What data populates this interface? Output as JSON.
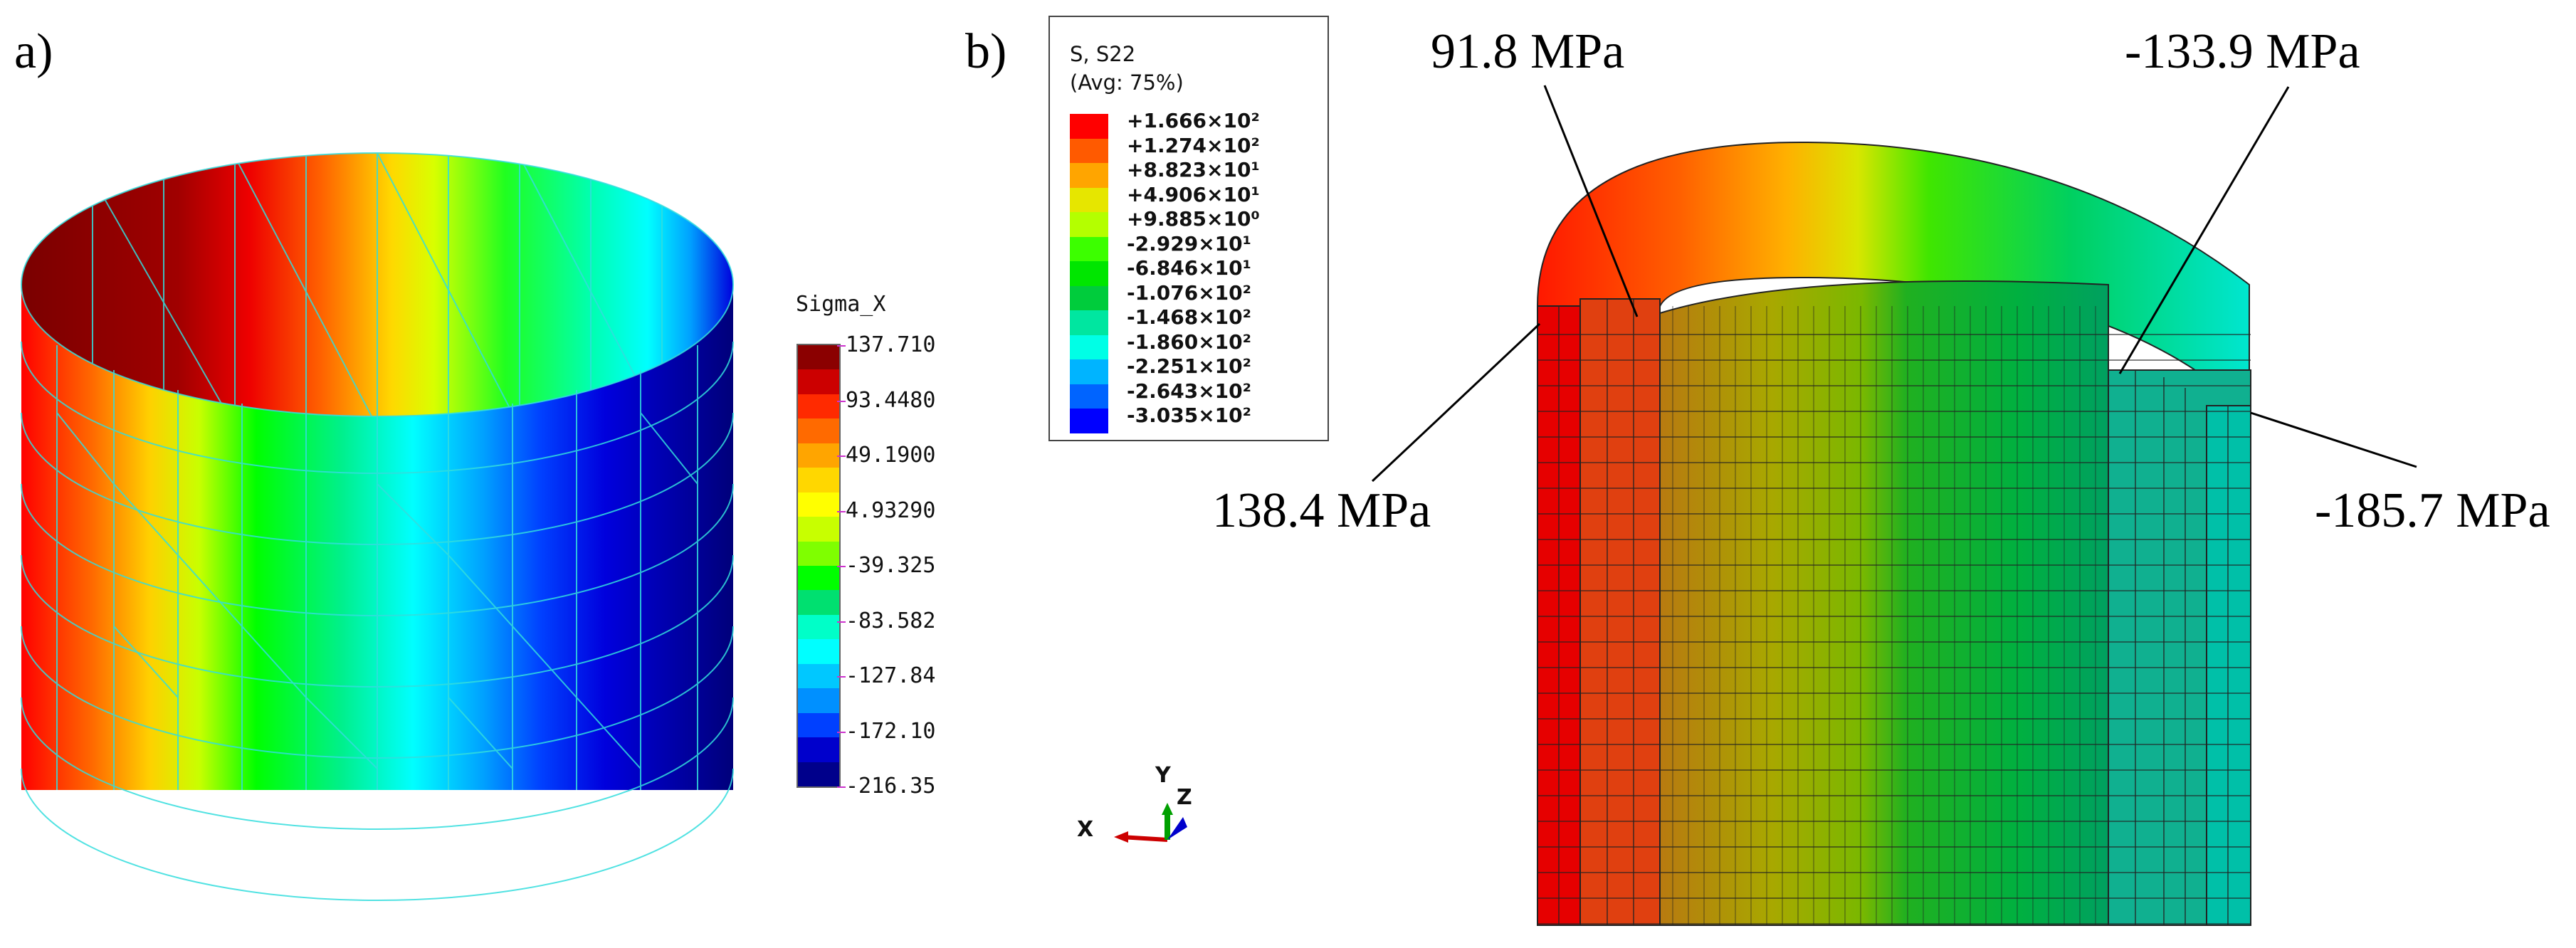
{
  "panels": {
    "a_label": "a)",
    "b_label": "b)"
  },
  "legend_a": {
    "title": "Sigma_X",
    "values": [
      "137.710",
      "93.4480",
      "49.1900",
      "4.93290",
      "-39.325",
      "-83.582",
      "-127.84",
      "-172.10",
      "-216.35"
    ],
    "colors": [
      "#8b0000",
      "#cc0000",
      "#ff2a00",
      "#ff6a00",
      "#ffa500",
      "#ffd700",
      "#ffff00",
      "#c8ff00",
      "#7fff00",
      "#00ff00",
      "#00e070",
      "#00ffc8",
      "#00ffff",
      "#00c8ff",
      "#0090ff",
      "#0040ff",
      "#0000cc",
      "#00008b"
    ]
  },
  "legend_b": {
    "header_1": "S, S22",
    "header_2": "(Avg: 75%)",
    "values": [
      "+1.666×10²",
      "+1.274×10²",
      "+8.823×10¹",
      "+4.906×10¹",
      "+9.885×10⁰",
      "-2.929×10¹",
      "-6.846×10¹",
      "-1.076×10²",
      "-1.468×10²",
      "-1.860×10²",
      "-2.251×10²",
      "-2.643×10²",
      "-3.035×10²"
    ],
    "colors": [
      "#ff0000",
      "#ff5a00",
      "#ffa500",
      "#e6e600",
      "#b4ff00",
      "#3cff00",
      "#00e600",
      "#00cc3c",
      "#00e6a0",
      "#00ffe6",
      "#00b4ff",
      "#0064ff",
      "#0000ff"
    ]
  },
  "annotations": {
    "top_left": "91.8 MPa",
    "top_right": "-133.9 MPa",
    "left": "138.4 MPa",
    "right": "-185.7 MPa"
  },
  "triad": {
    "x": "X",
    "y": "Y",
    "z": "Z"
  }
}
